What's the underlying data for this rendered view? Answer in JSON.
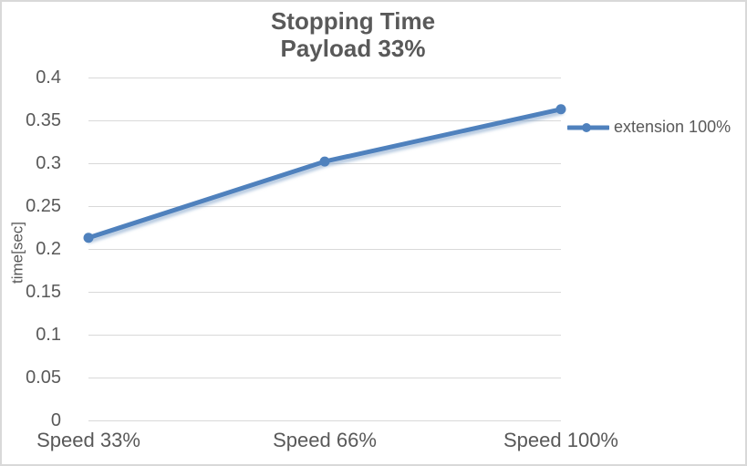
{
  "chart_data": {
    "type": "line",
    "title": "Stopping Time",
    "subtitle": "Payload 33%",
    "ylabel": "time[sec]",
    "xlabel": "",
    "categories": [
      "Speed 33%",
      "Speed 66%",
      "Speed 100%"
    ],
    "series": [
      {
        "name": "extension 100%",
        "values": [
          0.213,
          0.302,
          0.363
        ]
      }
    ],
    "ylim": [
      0,
      0.4
    ],
    "yticks": [
      0,
      0.05,
      0.1,
      0.15,
      0.2,
      0.25,
      0.3,
      0.35,
      0.4
    ],
    "grid": true,
    "legend_position": "right",
    "marker": "circle"
  },
  "legend": {
    "entry": "extension 100%"
  },
  "colors": {
    "series_line": "#4F81BD",
    "series_shadow": "#7a9cc6",
    "gridline": "#d9d9d9",
    "chart_border": "#d9d9d9",
    "text": "#595959",
    "background": "#ffffff"
  }
}
